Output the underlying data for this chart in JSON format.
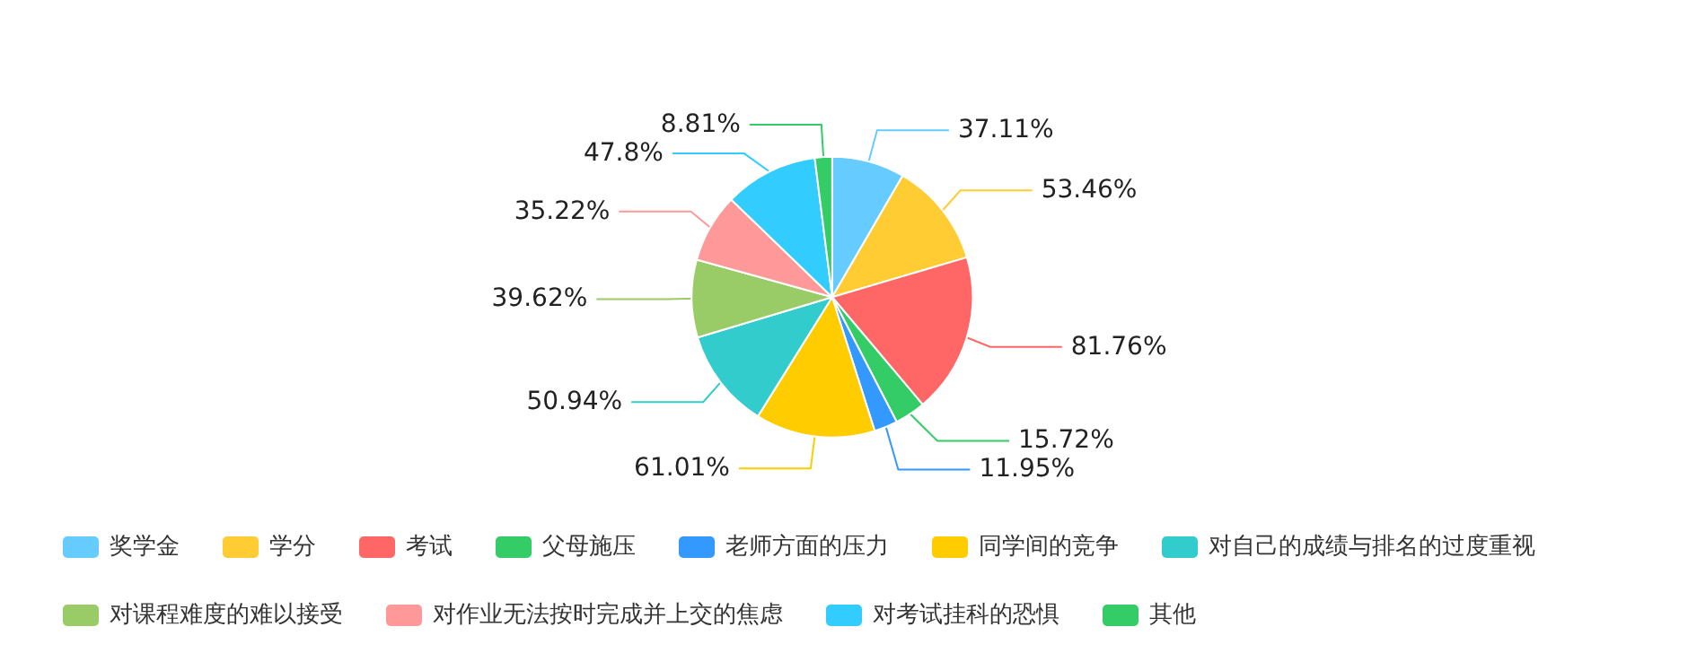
{
  "chart_data": {
    "type": "pie",
    "categories": [
      "奖学金",
      "学分",
      "考试",
      "父母施压",
      "老师方面的压力",
      "同学间的竞争",
      "对自己的成绩与排名的过度重视",
      "对课程难度的难以接受",
      "对作业无法按时完成并上交的焦虑",
      "对考试挂科的恐惧",
      "其他"
    ],
    "values": [
      37.11,
      53.46,
      81.76,
      15.72,
      11.95,
      61.01,
      50.94,
      39.62,
      35.22,
      47.8,
      8.81
    ],
    "value_labels": [
      "37.11%",
      "53.46%",
      "81.76%",
      "15.72%",
      "11.95%",
      "61.01%",
      "50.94%",
      "39.62%",
      "35.22%",
      "47.8%",
      "8.81%"
    ],
    "colors": [
      "#66ccff",
      "#ffcc33",
      "#ff6666",
      "#33cc66",
      "#3399ff",
      "#ffcc00",
      "#33cccc",
      "#99cc66",
      "#ff9999",
      "#33ccff",
      "#33cc66"
    ],
    "legend": "bottom"
  }
}
